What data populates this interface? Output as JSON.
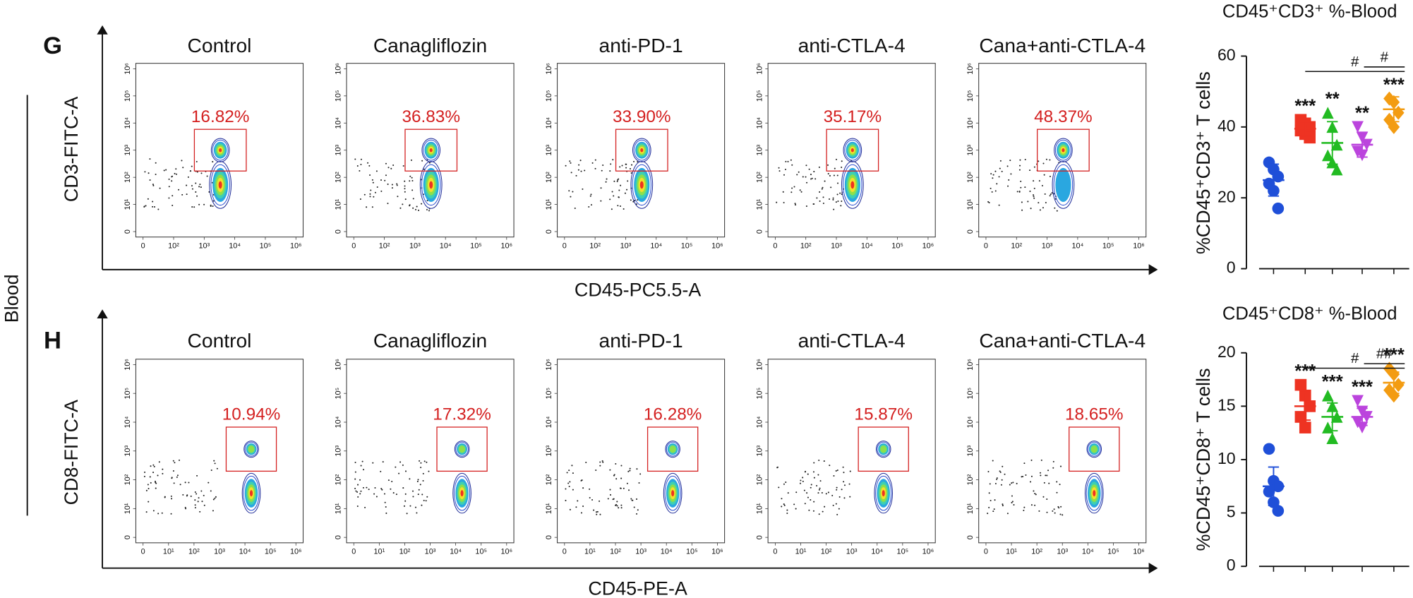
{
  "side_label": "Blood",
  "panels": [
    {
      "label": "G",
      "y_axis_label": "CD3-FITC-A",
      "x_axis_label": "CD45-PC5.5-A",
      "xticks": [
        "0",
        "10²",
        "10³",
        "10⁴",
        "10⁵",
        "10⁶"
      ],
      "yticks": [
        "0",
        "10¹",
        "10²",
        "10³",
        "10⁴",
        "10⁵",
        "10⁶"
      ],
      "plots": [
        {
          "title": "Control",
          "gate": "16.82%"
        },
        {
          "title": "Canagliflozin",
          "gate": "36.83%"
        },
        {
          "title": "anti-PD-1",
          "gate": "33.90%"
        },
        {
          "title": "anti-CTLA-4",
          "gate": "35.17%"
        },
        {
          "title": "Cana+anti-CTLA-4",
          "gate": "48.37%"
        }
      ]
    },
    {
      "label": "H",
      "y_axis_label": "CD8-FITC-A",
      "x_axis_label": "CD45-PE-A",
      "xticks": [
        "0",
        "10¹",
        "10²",
        "10³",
        "10⁴",
        "10⁵",
        "10⁶"
      ],
      "yticks": [
        "0",
        "10¹",
        "10²",
        "10³",
        "10⁴",
        "10⁵",
        "10⁶"
      ],
      "plots": [
        {
          "title": "Control",
          "gate": "10.94%"
        },
        {
          "title": "Canagliflozin",
          "gate": "17.32%"
        },
        {
          "title": "anti-PD-1",
          "gate": "16.28%"
        },
        {
          "title": "anti-CTLA-4",
          "gate": "15.87%"
        },
        {
          "title": "Cana+anti-CTLA-4",
          "gate": "18.65%"
        }
      ]
    }
  ],
  "chart_data": [
    {
      "type": "dotplot",
      "title": "CD45⁺CD3⁺ %-Blood",
      "y_label": "%CD45⁺CD3⁺ T cells",
      "ylim": [
        0,
        60
      ],
      "yticks": [
        0,
        20,
        40,
        60
      ],
      "series": [
        {
          "color": "#1f4fd8",
          "marker": "circle",
          "values": [
            30,
            28,
            26,
            24,
            22,
            17
          ],
          "mean": 25,
          "sd": 4.5,
          "significance": null
        },
        {
          "color": "#ee3322",
          "marker": "square",
          "values": [
            42,
            41,
            40,
            39,
            38,
            37
          ],
          "mean": 39.5,
          "sd": 2,
          "significance": "***"
        },
        {
          "color": "#22bb22",
          "marker": "triangle-up",
          "values": [
            44,
            40,
            35,
            32,
            30,
            28
          ],
          "mean": 35.5,
          "sd": 6,
          "significance": "**"
        },
        {
          "color": "#bb44dd",
          "marker": "triangle-down",
          "values": [
            40,
            37,
            35,
            33,
            32
          ],
          "mean": 35,
          "sd": 3.5,
          "significance": "**"
        },
        {
          "color": "#f39c12",
          "marker": "diamond",
          "values": [
            48,
            47,
            44,
            42,
            40
          ],
          "mean": 45,
          "sd": 3.5,
          "significance": "***"
        }
      ],
      "brackets": [
        {
          "label": "#",
          "from": 1,
          "to": 4
        },
        {
          "label": "#",
          "from": 3,
          "to": 4
        }
      ]
    },
    {
      "type": "dotplot",
      "title": "CD45⁺CD8⁺ %-Blood",
      "y_label": "%CD45⁺CD8⁺ T cells",
      "ylim": [
        0,
        20
      ],
      "yticks": [
        0,
        5,
        10,
        15,
        20
      ],
      "series": [
        {
          "color": "#1f4fd8",
          "marker": "circle",
          "values": [
            11,
            8,
            7.5,
            7,
            6,
            5.2
          ],
          "mean": 7.5,
          "sd": 1.8,
          "significance": null
        },
        {
          "color": "#ee3322",
          "marker": "square",
          "values": [
            17,
            16,
            15,
            14,
            13
          ],
          "mean": 15,
          "sd": 1.3,
          "significance": "***"
        },
        {
          "color": "#22bb22",
          "marker": "triangle-up",
          "values": [
            16,
            15,
            14,
            13,
            12
          ],
          "mean": 14,
          "sd": 1.3,
          "significance": "***"
        },
        {
          "color": "#bb44dd",
          "marker": "triangle-down",
          "values": [
            15.5,
            14.5,
            14,
            13.5,
            13
          ],
          "mean": 14,
          "sd": 0.8,
          "significance": "***"
        },
        {
          "color": "#f39c12",
          "marker": "diamond",
          "values": [
            18.5,
            18,
            17,
            16.5,
            16
          ],
          "mean": 17.2,
          "sd": 1,
          "significance": "***"
        }
      ],
      "brackets": [
        {
          "label": "#",
          "from": 1,
          "to": 4
        },
        {
          "label": "##",
          "from": 3,
          "to": 4
        }
      ]
    }
  ]
}
